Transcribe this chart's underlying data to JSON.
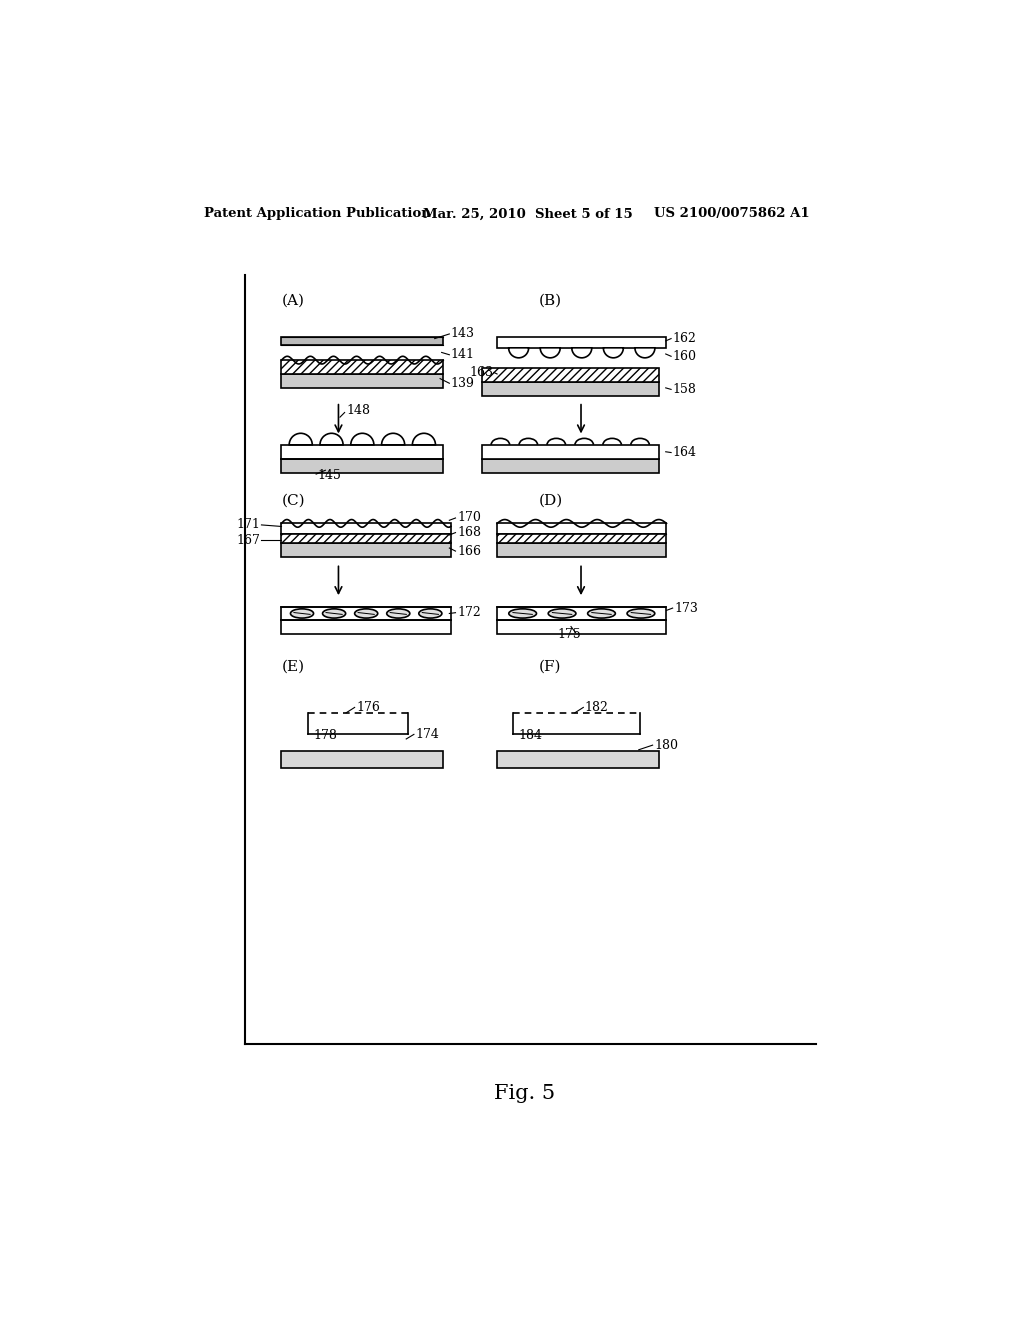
{
  "bg_color": "#ffffff",
  "header_left": "Patent Application Publication",
  "header_mid": "Mar. 25, 2010  Sheet 5 of 15",
  "header_right": "US 2100/0075862 A1",
  "fig_label": "Fig. 5"
}
